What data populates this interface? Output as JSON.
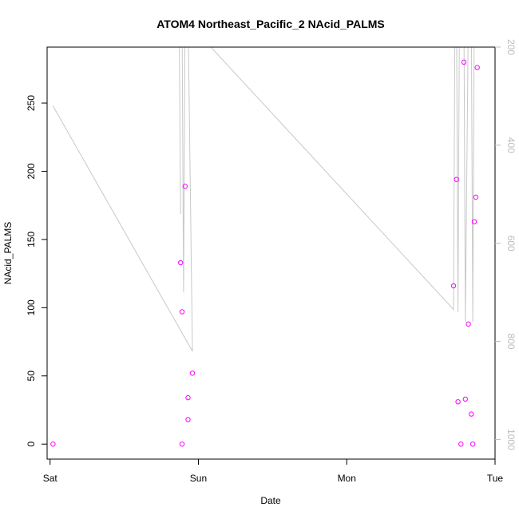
{
  "chart_data": {
    "type": "scatter",
    "title": "ATOM4 Northeast_Pacific_2 NAcid_PALMS",
    "xlabel": "Date",
    "ylabel": "NAcid_PALMS",
    "x_ticks": [
      {
        "label": "Sat",
        "t": 0
      },
      {
        "label": "Sun",
        "t": 1
      },
      {
        "label": "Mon",
        "t": 2
      },
      {
        "label": "Tue",
        "t": 3
      }
    ],
    "xlim": [
      -0.02,
      3.0
    ],
    "ylim": [
      -11,
      291
    ],
    "y_ticks": [
      0,
      50,
      100,
      150,
      200,
      250
    ],
    "grid": false,
    "points_color": "#ff00ff",
    "series": [
      {
        "points": [
          {
            "x": 0.02,
            "y": 0
          },
          {
            "x": 0.88,
            "y": 133
          },
          {
            "x": 0.89,
            "y": 97
          },
          {
            "x": 0.89,
            "y": 0
          },
          {
            "x": 0.91,
            "y": 189
          },
          {
            "x": 0.93,
            "y": 18
          },
          {
            "x": 0.93,
            "y": 34
          },
          {
            "x": 0.96,
            "y": 52
          },
          {
            "x": 2.72,
            "y": 116
          },
          {
            "x": 2.74,
            "y": 194
          },
          {
            "x": 2.75,
            "y": 31
          },
          {
            "x": 2.77,
            "y": 0
          },
          {
            "x": 2.79,
            "y": 280
          },
          {
            "x": 2.8,
            "y": 33
          },
          {
            "x": 2.82,
            "y": 88
          },
          {
            "x": 2.84,
            "y": 22
          },
          {
            "x": 2.85,
            "y": 0
          },
          {
            "x": 2.86,
            "y": 163
          },
          {
            "x": 2.87,
            "y": 181
          },
          {
            "x": 2.88,
            "y": 276
          }
        ]
      }
    ],
    "secondary_axis": {
      "color": "#bdbdbd",
      "reversed": true,
      "ticks": [
        200,
        400,
        600,
        800,
        1000
      ],
      "ylim": [
        200,
        1040
      ],
      "line_color": "#c8c8c8",
      "line": [
        {
          "x": 0.02,
          "y": 320
        },
        {
          "x": 0.96,
          "y": 820
        },
        {
          "x": 0.93,
          "y": 130
        },
        {
          "x": 0.91,
          "y": 130
        },
        {
          "x": 0.9,
          "y": 700
        },
        {
          "x": 0.89,
          "y": 130
        },
        {
          "x": 0.87,
          "y": 130
        },
        {
          "x": 0.88,
          "y": 540
        },
        {
          "x": 0.87,
          "y": 130
        },
        {
          "x": 2.72,
          "y": 735
        },
        {
          "x": 2.73,
          "y": 130
        },
        {
          "x": 2.74,
          "y": 130
        },
        {
          "x": 2.75,
          "y": 740
        },
        {
          "x": 2.76,
          "y": 130
        },
        {
          "x": 2.79,
          "y": 130
        },
        {
          "x": 2.8,
          "y": 760
        },
        {
          "x": 2.82,
          "y": 130
        },
        {
          "x": 2.84,
          "y": 130
        },
        {
          "x": 2.85,
          "y": 760
        },
        {
          "x": 2.86,
          "y": 130
        },
        {
          "x": 2.88,
          "y": 130
        }
      ]
    }
  }
}
